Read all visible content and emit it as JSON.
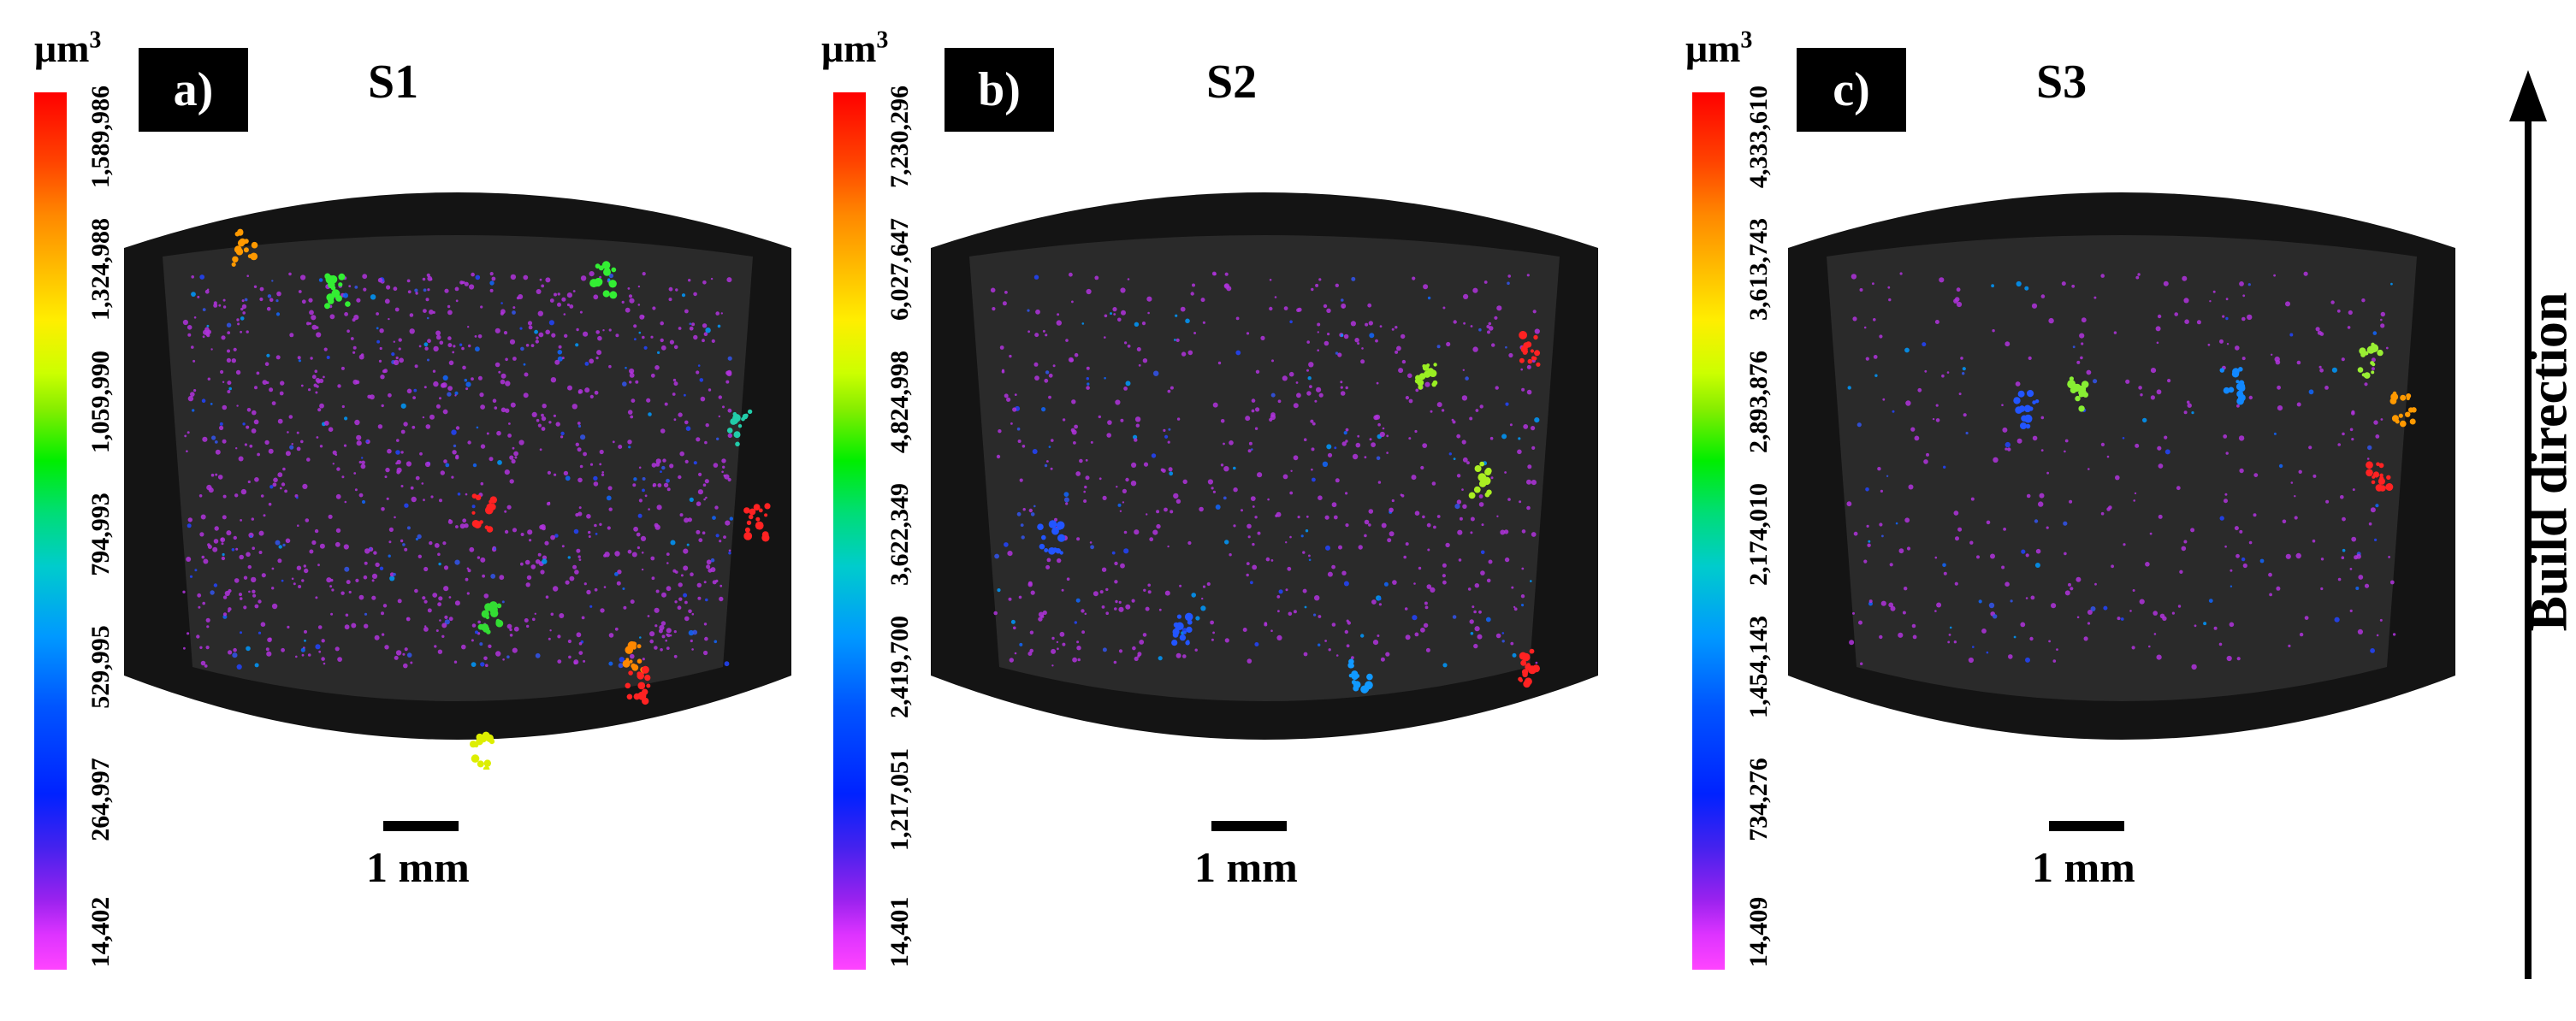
{
  "panels": [
    {
      "tag": "a)",
      "title": "S1",
      "unit_base": "μm",
      "unit_exp": "3",
      "scale_label": "1 mm",
      "ticks": [
        "14,402",
        "264,997",
        "529,995",
        "794,993",
        "1,059,990",
        "1,324,988",
        "1,589,986"
      ],
      "pore_density": "high"
    },
    {
      "tag": "b)",
      "title": "S2",
      "unit_base": "μm",
      "unit_exp": "3",
      "scale_label": "1 mm",
      "ticks": [
        "14,401",
        "1,217,051",
        "2,419,700",
        "3,622,349",
        "4,824,998",
        "6,027,647",
        "7,230,296"
      ],
      "pore_density": "medium"
    },
    {
      "tag": "c)",
      "title": "S3",
      "unit_base": "μm",
      "unit_exp": "3",
      "scale_label": "1 mm",
      "ticks": [
        "14,409",
        "734,276",
        "1,454,143",
        "2,174,010",
        "2,893,876",
        "3,613,743",
        "4,333,610"
      ],
      "pore_density": "low"
    }
  ],
  "build_direction_label": "Build direction"
}
